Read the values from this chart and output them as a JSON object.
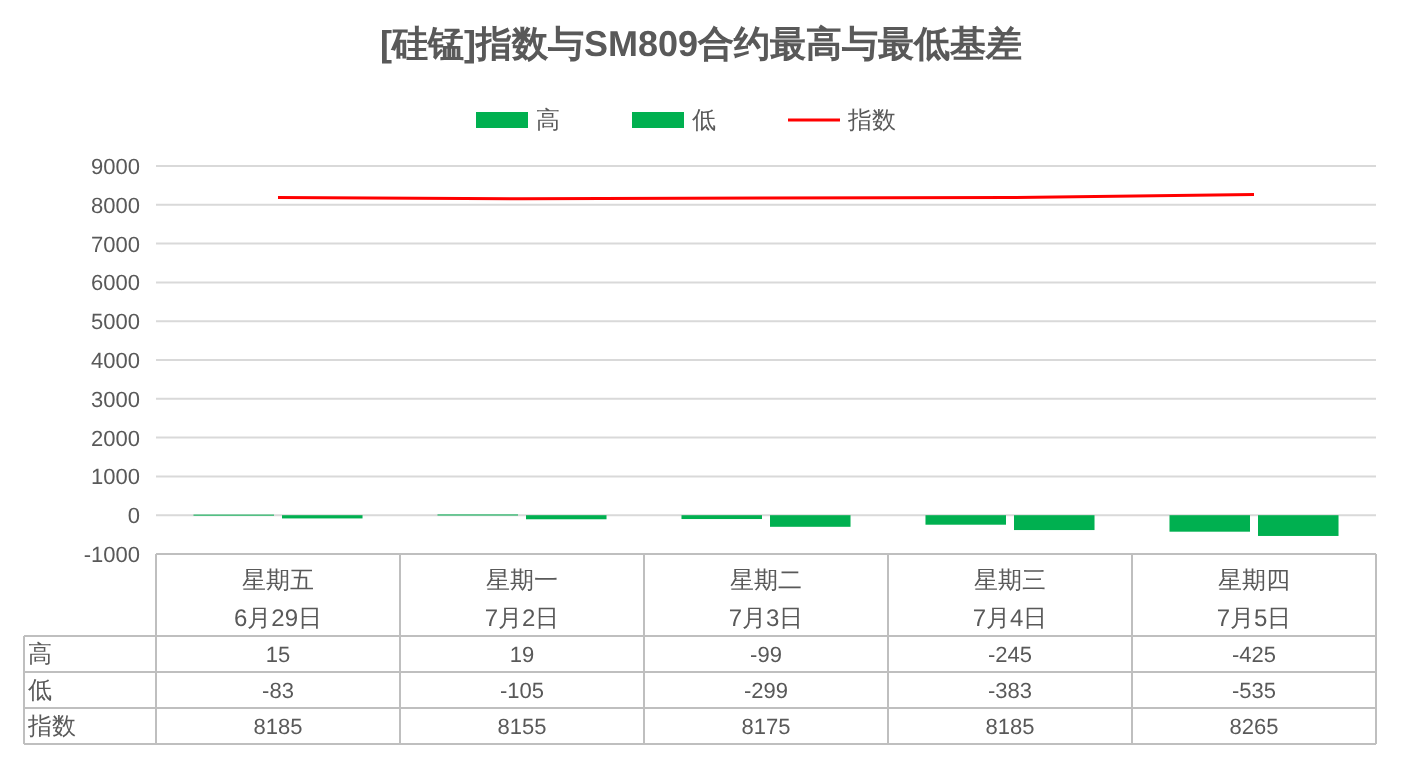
{
  "chart_data": {
    "type": "bar",
    "title": "[硅锰]指数与SM809合约最高与最低基差",
    "categories": [
      "星期五\n6月29日",
      "星期一\n7月2日",
      "星期二\n7月3日",
      "星期三\n7月4日",
      "星期四\n7月5日"
    ],
    "series": [
      {
        "name": "高",
        "color": "#00b050",
        "values": [
          15,
          19,
          -99,
          -245,
          -425
        ]
      },
      {
        "name": "低",
        "color": "#00b050",
        "values": [
          -83,
          -105,
          -299,
          -383,
          -535
        ]
      },
      {
        "name": "指数",
        "type": "line",
        "color": "#ff0000",
        "values": [
          8185,
          8155,
          8175,
          8185,
          8265
        ]
      }
    ],
    "ylim": [
      -1000,
      9000
    ],
    "yticks": [
      -1000,
      0,
      1000,
      2000,
      3000,
      4000,
      5000,
      6000,
      7000,
      8000,
      9000
    ],
    "grid": "y",
    "legend": "top",
    "data_labels": true
  }
}
